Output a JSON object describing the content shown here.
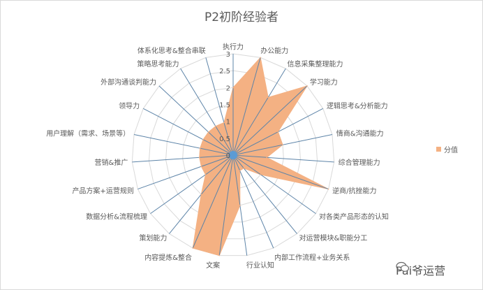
{
  "chart_data": {
    "type": "radar",
    "title": "P2初阶经验者",
    "categories": [
      "执行力",
      "办公能力",
      "信息采集整理能力",
      "学习能力",
      "逻辑思考&分析能力",
      "情商&沟通能力",
      "综合管理能力",
      "逆商/抗挫能力",
      "对各类产品形态的认知",
      "对运营模块&职能分工",
      "内部工作流程+业务关系",
      "行业认知",
      "文案",
      "内容提炼&整合",
      "策划能力",
      "数据分析&流程梳理",
      "产品方案+运营规则",
      "营销&推广",
      "用户理解（需求、场景等）",
      "领导力",
      "外部沟通谈判能力",
      "策略思考能力",
      "体系化思考&整合串联"
    ],
    "series": [
      {
        "name": "分值",
        "values": [
          2,
          3,
          2,
          3,
          1.5,
          1.5,
          1,
          3,
          1,
          0.5,
          0.5,
          1.5,
          3,
          3,
          1.5,
          1,
          1,
          1,
          1,
          1,
          1,
          1,
          1
        ],
        "color": "#F4B183"
      }
    ],
    "rlim": [
      0,
      3
    ],
    "ticks": [
      "0",
      "0.5",
      "1",
      "1.5",
      "2",
      "2.5",
      "3"
    ],
    "grid": true,
    "legend": "right"
  },
  "watermark": "Pai爷运营"
}
